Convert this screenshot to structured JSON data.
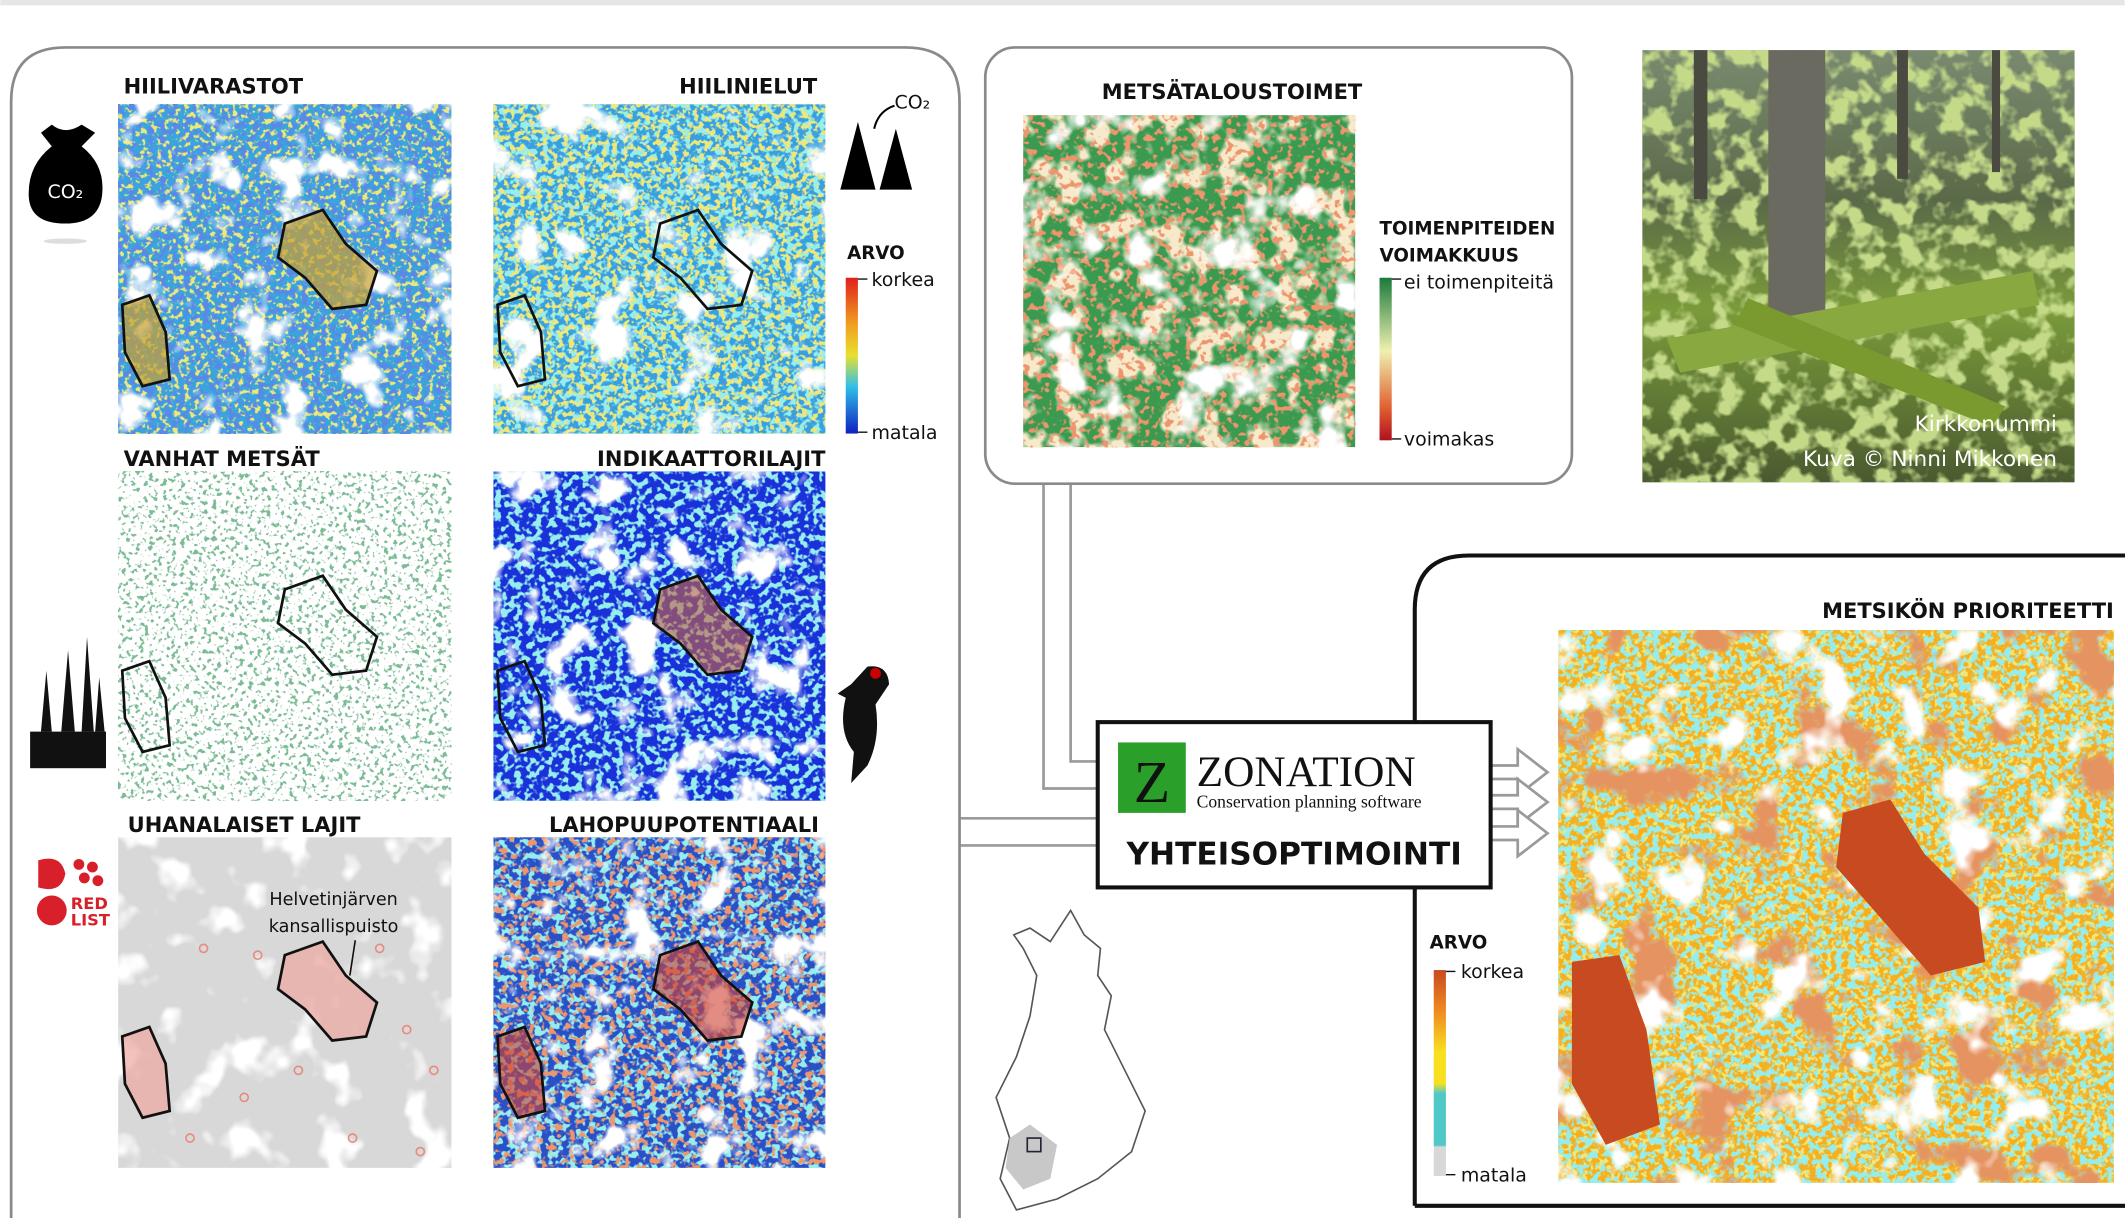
{
  "panels": [
    {
      "title": "HIILIVARASTOT"
    },
    {
      "title": "HIILINIELUT"
    },
    {
      "title": "VANHAT METSÄT"
    },
    {
      "title": "INDIKAATTORILAJIT"
    },
    {
      "title": "UHANALAISET LAJIT"
    },
    {
      "title": "LAHOPUUPOTENTIAALI"
    }
  ],
  "icons": {
    "co2": "CO₂",
    "red": "RED",
    "list": "LIST"
  },
  "value_legend": {
    "title": "ARVO",
    "high": "korkea",
    "low": "matala"
  },
  "annotation": [
    "Helvetinjärven",
    "kansallispuisto"
  ],
  "forestry": {
    "title": "METSÄTALOUSTOIMET",
    "legend_title": [
      "TOIMENPITEIDEN",
      "VOIMAKKUUS"
    ],
    "high": "ei toimenpiteitä",
    "low": "voimakas"
  },
  "photo": {
    "place": "Kirkkonummi",
    "credit": "Kuva © Ninni Mikkonen"
  },
  "zonation": {
    "logo": "Z",
    "name": "ZONATION",
    "tagline": "Conservation planning software",
    "label": "YHTEISOPTIMOINTI"
  },
  "result": {
    "title": "METSIKÖN PRIORITEETTI",
    "legend_title": "ARVO",
    "high": "korkea",
    "low": "matala"
  }
}
